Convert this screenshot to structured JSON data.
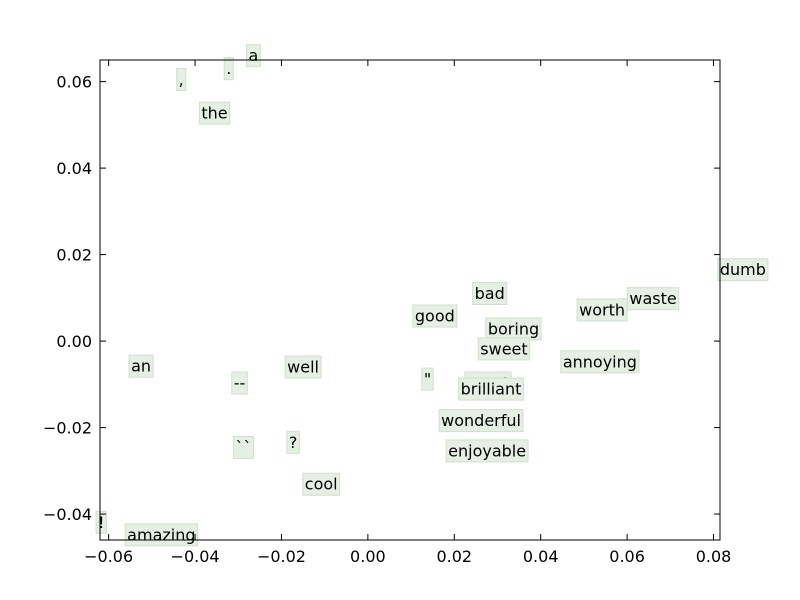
{
  "chart_data": {
    "type": "scatter",
    "title": "",
    "xlabel": "",
    "ylabel": "",
    "xlim": [
      -0.062,
      0.0815
    ],
    "ylim": [
      -0.046,
      0.065
    ],
    "xticks": [
      -0.06,
      -0.04,
      -0.02,
      0.0,
      0.02,
      0.04,
      0.06,
      0.08
    ],
    "yticks": [
      -0.04,
      -0.02,
      0.0,
      0.02,
      0.04,
      0.06
    ],
    "xtick_labels": [
      "−0.06",
      "−0.04",
      "−0.02",
      "0.00",
      "0.02",
      "0.04",
      "0.06",
      "0.08"
    ],
    "ytick_labels": [
      "−0.04",
      "−0.02",
      "0.00",
      "0.02",
      "0.04",
      "0.06"
    ],
    "grid": false,
    "box_color": "#e5efe4",
    "points": [
      {
        "label": "a",
        "x": -0.0265,
        "y": 0.066
      },
      {
        "label": ",",
        "x": -0.0432,
        "y": 0.0605
      },
      {
        "label": ".",
        "x": -0.0322,
        "y": 0.063
      },
      {
        "label": "the",
        "x": -0.0355,
        "y": 0.0527
      },
      {
        "label": "dumb",
        "x": 0.0868,
        "y": 0.0165
      },
      {
        "label": "bad",
        "x": 0.0282,
        "y": 0.011
      },
      {
        "label": "waste",
        "x": 0.066,
        "y": 0.0098
      },
      {
        "label": "worth",
        "x": 0.0542,
        "y": 0.0072
      },
      {
        "label": "good",
        "x": 0.0155,
        "y": 0.0058
      },
      {
        "label": "boring",
        "x": 0.0337,
        "y": 0.0028
      },
      {
        "label": "sweet",
        "x": 0.0315,
        "y": -0.0018
      },
      {
        "label": "annoying",
        "x": 0.0537,
        "y": -0.0048
      },
      {
        "label": "an",
        "x": -0.0525,
        "y": -0.0058
      },
      {
        "label": "well",
        "x": -0.015,
        "y": -0.006
      },
      {
        "label": "\"",
        "x": 0.0138,
        "y": -0.0088
      },
      {
        "label": "--",
        "x": -0.0297,
        "y": -0.0097
      },
      {
        "label": "great",
        "x": 0.0278,
        "y": -0.0097
      },
      {
        "label": "brilliant",
        "x": 0.0285,
        "y": -0.0111
      },
      {
        "label": "wonderful",
        "x": 0.0262,
        "y": -0.0184
      },
      {
        "label": "enjoyable",
        "x": 0.0276,
        "y": -0.0254
      },
      {
        "label": "?",
        "x": -0.0173,
        "y": -0.0234
      },
      {
        "label": "``",
        "x": -0.0288,
        "y": -0.0246
      },
      {
        "label": "cool",
        "x": -0.0108,
        "y": -0.0331
      },
      {
        "label": "!",
        "x": -0.0617,
        "y": -0.0419
      },
      {
        "label": "amazing",
        "x": -0.0478,
        "y": -0.0448
      }
    ]
  }
}
